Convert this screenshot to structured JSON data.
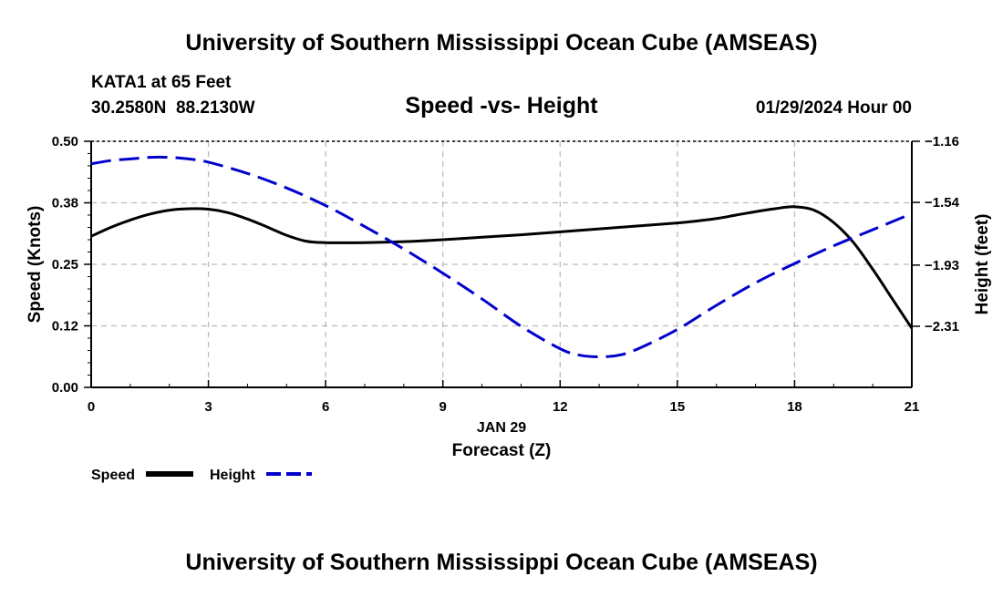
{
  "header": {
    "title": "University of Southern Mississippi Ocean Cube (AMSEAS)",
    "station": "KATA1 at 65 Feet",
    "coords": "30.2580N  88.2130W",
    "subtitle": "Speed -vs- Height",
    "date": "01/29/2024 Hour 00"
  },
  "footer": {
    "title": "University of Southern Mississippi Ocean Cube (AMSEAS)"
  },
  "legend": {
    "speed_label": "Speed",
    "height_label": "Height"
  },
  "chart_data": {
    "type": "line",
    "title": "Speed -vs- Height",
    "xlabel": "Forecast (Z)",
    "xlabel_date": "JAN 29",
    "ylabel_left": "Speed (Knots)",
    "ylabel_right": "Height (feet)",
    "xlim": [
      0,
      21
    ],
    "ylim_left": [
      0,
      0.5
    ],
    "ylim_right": [
      -2.69,
      -1.16
    ],
    "x_ticks": [
      0,
      3,
      6,
      9,
      12,
      15,
      18,
      21
    ],
    "x_tick_labels": [
      "0",
      "3",
      "6",
      "9",
      "12",
      "15",
      "18",
      "21"
    ],
    "y_left_ticks": [
      0,
      0.125,
      0.25,
      0.375,
      0.5
    ],
    "y_left_tick_labels": [
      "0.00",
      "0.12",
      "0.25",
      "0.38",
      "0.50"
    ],
    "y_right_ticks": [
      -1.16,
      -1.54,
      -1.93,
      -2.31
    ],
    "y_right_tick_labels": [
      "-1.16",
      "-1.54",
      "-1.93",
      "-2.31"
    ],
    "grid": true,
    "legend_position": "bottom-left",
    "colors": {
      "speed": "#000000",
      "height": "#0000cc",
      "grid": "#bbbbbb"
    },
    "series": [
      {
        "name": "Speed",
        "axis": "left",
        "style": "solid",
        "x": [
          0,
          0.5,
          1,
          1.5,
          2,
          2.5,
          3,
          3.5,
          4,
          4.5,
          5,
          5.5,
          6,
          7,
          8,
          9,
          10,
          11,
          12,
          13,
          14,
          15,
          15.5,
          16,
          16.5,
          17,
          17.5,
          18,
          18.5,
          19,
          19.5,
          20,
          20.5,
          21
        ],
        "values": [
          0.307,
          0.325,
          0.34,
          0.352,
          0.36,
          0.363,
          0.362,
          0.355,
          0.342,
          0.326,
          0.309,
          0.297,
          0.294,
          0.294,
          0.296,
          0.3,
          0.305,
          0.31,
          0.316,
          0.322,
          0.328,
          0.334,
          0.338,
          0.343,
          0.35,
          0.357,
          0.363,
          0.367,
          0.36,
          0.335,
          0.295,
          0.24,
          0.18,
          0.12
        ]
      },
      {
        "name": "Height",
        "axis": "right",
        "style": "dashed",
        "x": [
          0,
          0.5,
          1,
          1.5,
          2,
          2.5,
          3,
          4,
          5,
          6,
          7,
          8,
          9,
          10,
          11,
          12,
          12.5,
          13,
          13.5,
          14,
          15,
          16,
          17,
          18,
          19,
          20,
          21
        ],
        "values": [
          -1.3,
          -1.28,
          -1.27,
          -1.26,
          -1.26,
          -1.27,
          -1.29,
          -1.36,
          -1.45,
          -1.56,
          -1.69,
          -1.83,
          -1.98,
          -2.14,
          -2.31,
          -2.45,
          -2.49,
          -2.5,
          -2.49,
          -2.45,
          -2.33,
          -2.18,
          -2.04,
          -1.92,
          -1.81,
          -1.71,
          -1.61
        ]
      }
    ]
  }
}
